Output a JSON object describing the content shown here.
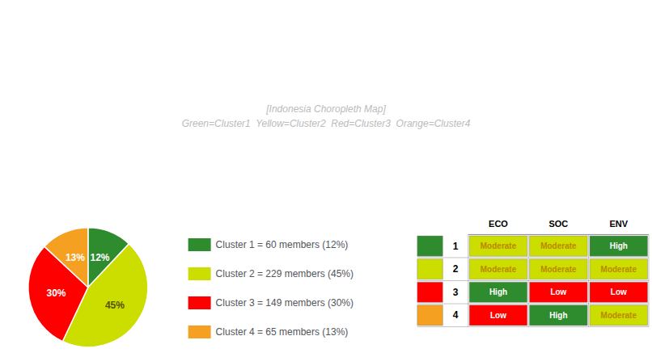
{
  "chart_data": [
    {
      "type": "pie",
      "categories": [
        "Cluster 1 = 60 members (12%)",
        "Cluster 2 = 229 members (45%)",
        "Cluster 3 = 149 members (30%)",
        "Cluster 4 = 65 members (13%)"
      ],
      "values": [
        12,
        45,
        30,
        13
      ],
      "value_labels": [
        "12%",
        "45%",
        "30%",
        "13%"
      ],
      "value_label_colors": [
        "#ffffff",
        "#555500",
        "#ffffff",
        "#ffffff"
      ],
      "colors": [
        "#2e8b2e",
        "#ccdd00",
        "#ff0000",
        "#f5a020"
      ],
      "data_labels": true,
      "legend": "bottom",
      "annotations": [
        "[Indonesia Choropleth Map]\nGreen=Cluster1  Yellow=Cluster2  Red=Cluster3  Orange=Cluster4"
      ]
    },
    {
      "type": "table",
      "categories": [
        "1",
        "2",
        "3",
        "4"
      ],
      "columns": [
        "ECO",
        "SOC",
        "ENV"
      ],
      "cells": [
        [
          "Moderate",
          "Moderate",
          "High"
        ],
        [
          "Moderate",
          "Moderate",
          "Moderate"
        ],
        [
          "High",
          "Low",
          "Low"
        ],
        [
          "Low",
          "High",
          "Moderate"
        ]
      ],
      "cell_colors": [
        [
          "#ccdd00",
          "#ccdd00",
          "#2e8b2e"
        ],
        [
          "#ccdd00",
          "#ccdd00",
          "#ccdd00"
        ],
        [
          "#2e8b2e",
          "#ff0000",
          "#ff0000"
        ],
        [
          "#ff0000",
          "#2e8b2e",
          "#ccdd00"
        ]
      ],
      "text_colors": [
        [
          "#bb8800",
          "#bb8800",
          "#ffffff"
        ],
        [
          "#bb8800",
          "#bb8800",
          "#bb8800"
        ],
        [
          "#ffffff",
          "#ffffff",
          "#ffffff"
        ],
        [
          "#ffffff",
          "#ffffff",
          "#bb8800"
        ]
      ],
      "colors": [
        "#2e8b2e",
        "#ccdd00",
        "#ff0000",
        "#f5a020"
      ]
    }
  ]
}
